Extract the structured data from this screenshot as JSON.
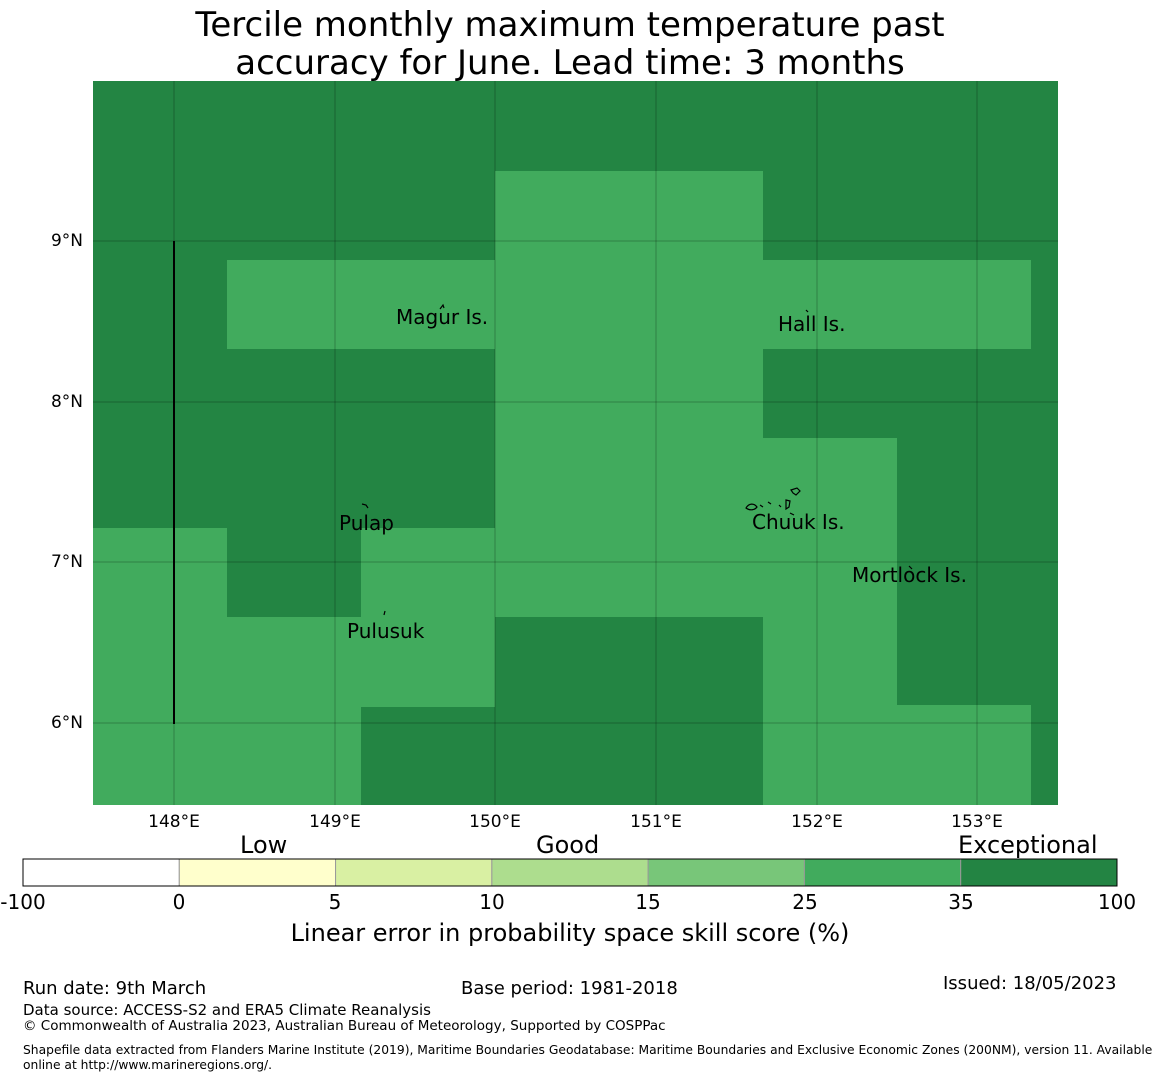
{
  "title": {
    "line1": "Tercile monthly maximum temperature past",
    "line2": "accuracy for June. Lead time: 3 months"
  },
  "map": {
    "lat_ticks": [
      "9°N",
      "8°N",
      "7°N",
      "6°N"
    ],
    "lon_ticks": [
      "148°E",
      "149°E",
      "150°E",
      "151°E",
      "152°E",
      "153°E"
    ],
    "colors": {
      "exceptional": "#238543",
      "good_high": "#41ab5d"
    },
    "place_labels": [
      {
        "name": "Magur Is.",
        "key": "magur"
      },
      {
        "name": "Hall Is.",
        "key": "hall"
      },
      {
        "name": "Pulap",
        "key": "pulap"
      },
      {
        "name": "Chuuk Is.",
        "key": "chuuk"
      },
      {
        "name": "Mortlock Is.",
        "key": "mortlock"
      },
      {
        "name": "Pulusuk",
        "key": "pulusuk"
      }
    ]
  },
  "colorbar": {
    "category_labels": {
      "low": "Low",
      "good": "Good",
      "exceptional": "Exceptional"
    },
    "ticks": [
      "-100",
      "0",
      "5",
      "10",
      "15",
      "25",
      "35",
      "100"
    ],
    "colors": [
      "#ffffff",
      "#ffffcc",
      "#d9f0a3",
      "#addd8e",
      "#78c679",
      "#41ab5d",
      "#238443"
    ],
    "label": "Linear error in probability space skill score (%)"
  },
  "footer": {
    "run_date": "Run date: 9th March",
    "base_period": "Base period: 1981-2018",
    "issued": "Issued: 18/05/2023",
    "data_source": "Data source: ACCESS-S2 and ERA5 Climate Reanalysis",
    "copyright": "© Commonwealth of Australia 2023, Australian Bureau of Meteorology, Supported by COSPPac",
    "shapefile_line1": "Shapefile data extracted from Flanders Marine Institute (2019), Maritime Boundaries Geodatabase: Maritime Boundaries and Exclusive Economic Zones (200NM), version 11. Available",
    "shapefile_line2": "online at http://www.marineregions.org/."
  }
}
